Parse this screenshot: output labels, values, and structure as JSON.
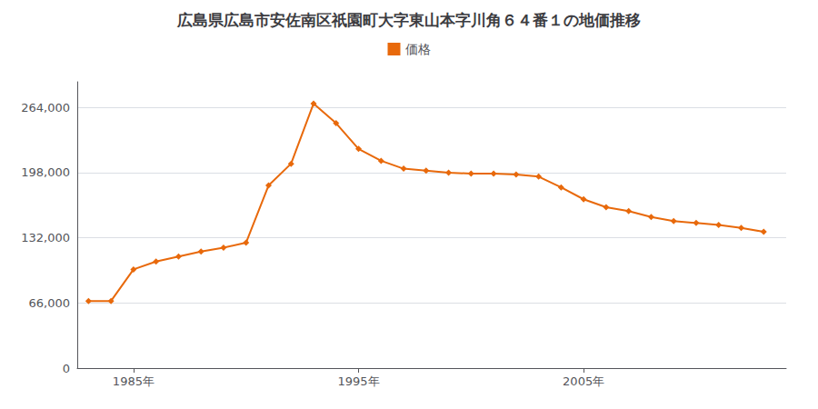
{
  "chart_data": {
    "type": "line",
    "title": "広島県広島市安佐南区祇園町大字東山本字川角６４番１の地価推移",
    "x": [
      1983,
      1984,
      1985,
      1986,
      1987,
      1988,
      1989,
      1990,
      1991,
      1992,
      1993,
      1994,
      1995,
      1996,
      1997,
      1998,
      1999,
      2000,
      2001,
      2002,
      2003,
      2004,
      2005,
      2006,
      2007,
      2008,
      2009,
      2010,
      2011,
      2012,
      2013
    ],
    "series": [
      {
        "name": "価格",
        "color": "#E8690B",
        "marker": "diamond",
        "values": [
          68000,
          68000,
          100000,
          108000,
          113000,
          118000,
          122000,
          127000,
          185000,
          207000,
          268000,
          248000,
          222000,
          210000,
          202000,
          200000,
          198000,
          197000,
          197000,
          196000,
          194000,
          183000,
          171000,
          163000,
          159000,
          153000,
          149000,
          147000,
          145000,
          142000,
          138000
        ]
      }
    ],
    "xlim": [
      1982.5,
      2014
    ],
    "xticks": [
      {
        "value": 1985,
        "label": "1985年"
      },
      {
        "value": 1995,
        "label": "1995年"
      },
      {
        "value": 2005,
        "label": "2005年"
      }
    ],
    "ylim": [
      0,
      290000
    ],
    "yticks": [
      0,
      {
        "value": 66000,
        "label": "66,000"
      },
      {
        "value": 132000,
        "label": "132,000"
      },
      {
        "value": 198000,
        "label": "198,000"
      },
      {
        "value": 264000,
        "label": "264,000"
      }
    ],
    "grid": true,
    "legend": "top"
  }
}
